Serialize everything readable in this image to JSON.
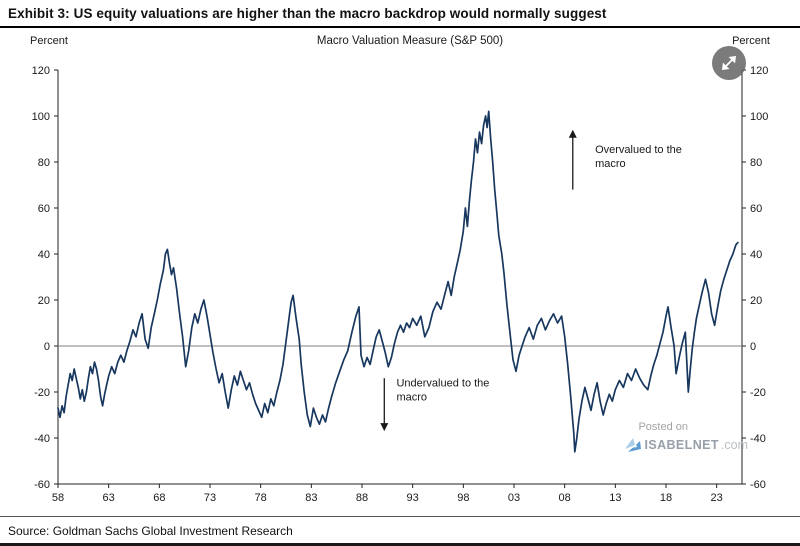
{
  "window": {
    "exhibit_title": "Exhibit 3: US equity valuations are higher than the macro backdrop would normally suggest",
    "source_line": "Source: Goldman Sachs Global Investment Research"
  },
  "watermark": {
    "posted_on": "Posted on",
    "brand": "ISABELNET",
    "brand_suffix": ".com"
  },
  "controls": {
    "expand_button": "expand"
  },
  "chart_data": {
    "type": "line",
    "title": "Macro Valuation Measure (S&P 500)",
    "left_axis_label": "Percent",
    "right_axis_label": "Percent",
    "ylim": [
      -60,
      120
    ],
    "yticks": [
      120,
      100,
      80,
      60,
      40,
      20,
      0,
      -20,
      -40,
      -60
    ],
    "xlim": [
      1958,
      2025.5
    ],
    "xticks": [
      {
        "year": 1958,
        "label": "58"
      },
      {
        "year": 1963,
        "label": "63"
      },
      {
        "year": 1968,
        "label": "68"
      },
      {
        "year": 1973,
        "label": "73"
      },
      {
        "year": 1978,
        "label": "78"
      },
      {
        "year": 1983,
        "label": "83"
      },
      {
        "year": 1988,
        "label": "88"
      },
      {
        "year": 1993,
        "label": "93"
      },
      {
        "year": 1998,
        "label": "98"
      },
      {
        "year": 2003,
        "label": "03"
      },
      {
        "year": 2008,
        "label": "08"
      },
      {
        "year": 2013,
        "label": "13"
      },
      {
        "year": 2018,
        "label": "18"
      },
      {
        "year": 2023,
        "label": "23"
      }
    ],
    "zero_line": true,
    "line_color": "#17375e",
    "axis_color": "#222222",
    "series": [
      {
        "name": "Macro valuation measure (S&P 500)",
        "points": [
          [
            1958.0,
            -27
          ],
          [
            1958.2,
            -31
          ],
          [
            1958.4,
            -26
          ],
          [
            1958.6,
            -29
          ],
          [
            1958.8,
            -22
          ],
          [
            1959.0,
            -17
          ],
          [
            1959.2,
            -12
          ],
          [
            1959.4,
            -15
          ],
          [
            1959.6,
            -10
          ],
          [
            1959.8,
            -14
          ],
          [
            1960.0,
            -18
          ],
          [
            1960.2,
            -23
          ],
          [
            1960.4,
            -19
          ],
          [
            1960.6,
            -24
          ],
          [
            1960.8,
            -20
          ],
          [
            1961.0,
            -14
          ],
          [
            1961.2,
            -9
          ],
          [
            1961.4,
            -12
          ],
          [
            1961.6,
            -7
          ],
          [
            1961.8,
            -10
          ],
          [
            1962.0,
            -15
          ],
          [
            1962.2,
            -22
          ],
          [
            1962.4,
            -26
          ],
          [
            1962.6,
            -21
          ],
          [
            1962.8,
            -17
          ],
          [
            1963.0,
            -13
          ],
          [
            1963.3,
            -9
          ],
          [
            1963.6,
            -12
          ],
          [
            1963.9,
            -7
          ],
          [
            1964.2,
            -4
          ],
          [
            1964.5,
            -7
          ],
          [
            1964.8,
            -2
          ],
          [
            1965.1,
            2
          ],
          [
            1965.4,
            7
          ],
          [
            1965.7,
            4
          ],
          [
            1966.0,
            10
          ],
          [
            1966.3,
            14
          ],
          [
            1966.6,
            3
          ],
          [
            1966.9,
            -1
          ],
          [
            1967.2,
            8
          ],
          [
            1967.5,
            14
          ],
          [
            1967.8,
            20
          ],
          [
            1968.1,
            27
          ],
          [
            1968.4,
            33
          ],
          [
            1968.6,
            40
          ],
          [
            1968.8,
            42
          ],
          [
            1969.0,
            36
          ],
          [
            1969.2,
            31
          ],
          [
            1969.4,
            34
          ],
          [
            1969.7,
            25
          ],
          [
            1970.0,
            14
          ],
          [
            1970.3,
            4
          ],
          [
            1970.6,
            -9
          ],
          [
            1970.9,
            -2
          ],
          [
            1971.2,
            8
          ],
          [
            1971.5,
            14
          ],
          [
            1971.8,
            10
          ],
          [
            1972.1,
            16
          ],
          [
            1972.4,
            20
          ],
          [
            1972.7,
            13
          ],
          [
            1973.0,
            5
          ],
          [
            1973.3,
            -3
          ],
          [
            1973.6,
            -10
          ],
          [
            1973.9,
            -16
          ],
          [
            1974.2,
            -12
          ],
          [
            1974.5,
            -20
          ],
          [
            1974.8,
            -27
          ],
          [
            1975.1,
            -19
          ],
          [
            1975.4,
            -13
          ],
          [
            1975.7,
            -17
          ],
          [
            1976.0,
            -11
          ],
          [
            1976.3,
            -15
          ],
          [
            1976.6,
            -19
          ],
          [
            1976.9,
            -16
          ],
          [
            1977.2,
            -21
          ],
          [
            1977.5,
            -25
          ],
          [
            1977.8,
            -28
          ],
          [
            1978.1,
            -31
          ],
          [
            1978.4,
            -25
          ],
          [
            1978.7,
            -29
          ],
          [
            1979.0,
            -23
          ],
          [
            1979.3,
            -26
          ],
          [
            1979.6,
            -20
          ],
          [
            1979.9,
            -15
          ],
          [
            1980.2,
            -8
          ],
          [
            1980.5,
            2
          ],
          [
            1980.8,
            12
          ],
          [
            1981.0,
            19
          ],
          [
            1981.2,
            22
          ],
          [
            1981.5,
            12
          ],
          [
            1981.8,
            3
          ],
          [
            1982.0,
            -8
          ],
          [
            1982.3,
            -20
          ],
          [
            1982.6,
            -30
          ],
          [
            1982.9,
            -35
          ],
          [
            1983.2,
            -27
          ],
          [
            1983.5,
            -31
          ],
          [
            1983.8,
            -34
          ],
          [
            1984.1,
            -30
          ],
          [
            1984.4,
            -33
          ],
          [
            1984.7,
            -27
          ],
          [
            1985.0,
            -22
          ],
          [
            1985.4,
            -16
          ],
          [
            1985.8,
            -11
          ],
          [
            1986.2,
            -6
          ],
          [
            1986.6,
            -2
          ],
          [
            1987.0,
            6
          ],
          [
            1987.4,
            13
          ],
          [
            1987.7,
            17
          ],
          [
            1987.9,
            -4
          ],
          [
            1988.2,
            -9
          ],
          [
            1988.5,
            -5
          ],
          [
            1988.8,
            -8
          ],
          [
            1989.1,
            -2
          ],
          [
            1989.4,
            4
          ],
          [
            1989.7,
            7
          ],
          [
            1990.0,
            2
          ],
          [
            1990.3,
            -3
          ],
          [
            1990.6,
            -9
          ],
          [
            1990.9,
            -5
          ],
          [
            1991.2,
            1
          ],
          [
            1991.5,
            6
          ],
          [
            1991.8,
            9
          ],
          [
            1992.1,
            6
          ],
          [
            1992.4,
            10
          ],
          [
            1992.7,
            8
          ],
          [
            1993.0,
            12
          ],
          [
            1993.4,
            9
          ],
          [
            1993.8,
            13
          ],
          [
            1994.2,
            4
          ],
          [
            1994.6,
            8
          ],
          [
            1995.0,
            15
          ],
          [
            1995.4,
            19
          ],
          [
            1995.8,
            16
          ],
          [
            1996.2,
            23
          ],
          [
            1996.5,
            28
          ],
          [
            1996.8,
            22
          ],
          [
            1997.1,
            30
          ],
          [
            1997.4,
            36
          ],
          [
            1997.7,
            42
          ],
          [
            1998.0,
            50
          ],
          [
            1998.2,
            60
          ],
          [
            1998.4,
            52
          ],
          [
            1998.6,
            63
          ],
          [
            1998.8,
            72
          ],
          [
            1999.0,
            80
          ],
          [
            1999.2,
            90
          ],
          [
            1999.4,
            84
          ],
          [
            1999.6,
            93
          ],
          [
            1999.8,
            88
          ],
          [
            2000.0,
            96
          ],
          [
            2000.2,
            100
          ],
          [
            2000.35,
            95
          ],
          [
            2000.5,
            102
          ],
          [
            2000.7,
            90
          ],
          [
            2000.9,
            80
          ],
          [
            2001.1,
            68
          ],
          [
            2001.3,
            58
          ],
          [
            2001.5,
            48
          ],
          [
            2001.8,
            40
          ],
          [
            2002.0,
            32
          ],
          [
            2002.3,
            18
          ],
          [
            2002.6,
            6
          ],
          [
            2002.9,
            -6
          ],
          [
            2003.2,
            -11
          ],
          [
            2003.5,
            -4
          ],
          [
            2003.8,
            0
          ],
          [
            2004.1,
            4
          ],
          [
            2004.5,
            8
          ],
          [
            2004.9,
            3
          ],
          [
            2005.3,
            9
          ],
          [
            2005.7,
            12
          ],
          [
            2006.1,
            7
          ],
          [
            2006.5,
            11
          ],
          [
            2006.9,
            14
          ],
          [
            2007.3,
            10
          ],
          [
            2007.7,
            13
          ],
          [
            2008.0,
            4
          ],
          [
            2008.3,
            -8
          ],
          [
            2008.6,
            -22
          ],
          [
            2008.9,
            -38
          ],
          [
            2009.0,
            -46
          ],
          [
            2009.2,
            -40
          ],
          [
            2009.4,
            -32
          ],
          [
            2009.7,
            -24
          ],
          [
            2010.0,
            -18
          ],
          [
            2010.3,
            -23
          ],
          [
            2010.6,
            -28
          ],
          [
            2010.9,
            -21
          ],
          [
            2011.2,
            -16
          ],
          [
            2011.5,
            -24
          ],
          [
            2011.8,
            -30
          ],
          [
            2012.1,
            -25
          ],
          [
            2012.4,
            -21
          ],
          [
            2012.7,
            -24
          ],
          [
            2013.0,
            -19
          ],
          [
            2013.4,
            -15
          ],
          [
            2013.8,
            -18
          ],
          [
            2014.2,
            -12
          ],
          [
            2014.6,
            -15
          ],
          [
            2015.0,
            -10
          ],
          [
            2015.4,
            -14
          ],
          [
            2015.8,
            -17
          ],
          [
            2016.2,
            -19
          ],
          [
            2016.5,
            -13
          ],
          [
            2016.8,
            -8
          ],
          [
            2017.1,
            -4
          ],
          [
            2017.4,
            1
          ],
          [
            2017.7,
            6
          ],
          [
            2018.0,
            13
          ],
          [
            2018.2,
            17
          ],
          [
            2018.5,
            8
          ],
          [
            2018.8,
            0
          ],
          [
            2019.0,
            -12
          ],
          [
            2019.3,
            -5
          ],
          [
            2019.6,
            1
          ],
          [
            2019.9,
            6
          ],
          [
            2020.2,
            -20
          ],
          [
            2020.4,
            -10
          ],
          [
            2020.6,
            -1
          ],
          [
            2020.8,
            6
          ],
          [
            2021.0,
            12
          ],
          [
            2021.3,
            18
          ],
          [
            2021.6,
            24
          ],
          [
            2021.9,
            29
          ],
          [
            2022.2,
            23
          ],
          [
            2022.5,
            14
          ],
          [
            2022.8,
            9
          ],
          [
            2023.1,
            17
          ],
          [
            2023.4,
            24
          ],
          [
            2023.7,
            29
          ],
          [
            2024.0,
            33
          ],
          [
            2024.3,
            37
          ],
          [
            2024.6,
            40
          ],
          [
            2024.9,
            44
          ],
          [
            2025.1,
            45
          ]
        ]
      }
    ],
    "annotations": [
      {
        "id": "overvalued",
        "text_lines": [
          "Overvalued to the",
          "macro"
        ],
        "arrow": "up",
        "arrow_year": 2008.8,
        "arrow_value_from": 68,
        "arrow_value_to": 94,
        "text_year": 2011.0,
        "text_value": 84
      },
      {
        "id": "undervalued",
        "text_lines": [
          "Undervalued to the",
          "macro"
        ],
        "arrow": "down",
        "arrow_year": 1990.2,
        "arrow_value_from": -14,
        "arrow_value_to": -37,
        "text_year": 1991.4,
        "text_value": -17.5
      }
    ]
  }
}
